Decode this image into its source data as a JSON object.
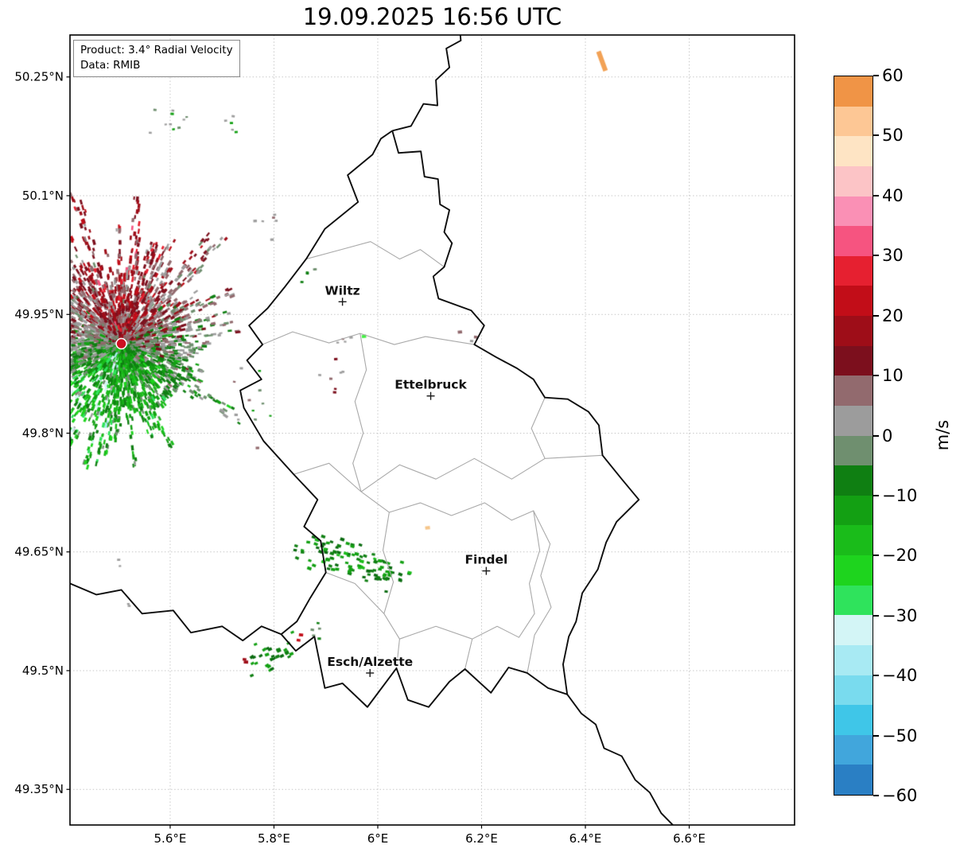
{
  "title": "19.09.2025 16:56 UTC",
  "product_box": {
    "line1": "Product: 3.4° Radial Velocity",
    "line2": "Data: RMIB"
  },
  "axes": {
    "x_ticks": [
      {
        "v": 5.6,
        "label": "5.6°E"
      },
      {
        "v": 5.8,
        "label": "5.8°E"
      },
      {
        "v": 6.0,
        "label": "6°E"
      },
      {
        "v": 6.2,
        "label": "6.2°E"
      },
      {
        "v": 6.4,
        "label": "6.4°E"
      },
      {
        "v": 6.6,
        "label": "6.6°E"
      }
    ],
    "y_ticks": [
      {
        "v": 50.25,
        "label": "50.25°N"
      },
      {
        "v": 50.1,
        "label": "50.1°N"
      },
      {
        "v": 49.95,
        "label": "49.95°N"
      },
      {
        "v": 49.8,
        "label": "49.8°N"
      },
      {
        "v": 49.65,
        "label": "49.65°N"
      },
      {
        "v": 49.5,
        "label": "49.5°N"
      },
      {
        "v": 49.35,
        "label": "49.35°N"
      }
    ]
  },
  "chart_data": {
    "type": "heatmap",
    "title": "19.09.2025 16:56 UTC",
    "product": "3.4° Radial Velocity",
    "data_source": "RMIB",
    "xlim": [
      5.407,
      6.803
    ],
    "ylim": [
      49.305,
      50.303
    ],
    "grid": true,
    "colorbar": {
      "label": "m/s",
      "min": -60,
      "max": 60,
      "ticks": [
        {
          "v": 60,
          "label": "60"
        },
        {
          "v": 50,
          "label": "50"
        },
        {
          "v": 40,
          "label": "40"
        },
        {
          "v": 30,
          "label": "30"
        },
        {
          "v": 20,
          "label": "20"
        },
        {
          "v": 10,
          "label": "10"
        },
        {
          "v": 0,
          "label": "0"
        },
        {
          "v": -10,
          "label": "−10"
        },
        {
          "v": -20,
          "label": "−20"
        },
        {
          "v": -30,
          "label": "−30"
        },
        {
          "v": -40,
          "label": "−40"
        },
        {
          "v": -50,
          "label": "−50"
        },
        {
          "v": -60,
          "label": "−60"
        }
      ],
      "segment_colors_bottom_to_top": [
        "#2a7fc4",
        "#41a6dc",
        "#3fc6e8",
        "#79dbee",
        "#a8eaf3",
        "#d3f5f6",
        "#2fe35c",
        "#1ed41e",
        "#1abc1a",
        "#13a013",
        "#0f7f12",
        "#6f8f6f",
        "#9c9c9c",
        "#926a6e",
        "#7c0f1d",
        "#9e0d18",
        "#c20d18",
        "#e62030",
        "#f65480",
        "#fa90b5",
        "#fcc4c6",
        "#fee4c4",
        "#fdc795",
        "#f09446"
      ]
    },
    "radar": {
      "site_lon": 5.506,
      "site_lat": 49.913,
      "core_radius_deg": 0.135,
      "max_radius_deg": 0.345,
      "amplitude_ms": 13,
      "noise_ms": 6.5,
      "seed": 1337,
      "samples": 7500,
      "marker_color": "#cc1122"
    },
    "cities": [
      {
        "name": "Wiltz",
        "lon": 5.932,
        "lat": 49.966
      },
      {
        "name": "Ettelbruck",
        "lon": 6.102,
        "lat": 49.847
      },
      {
        "name": "Findel",
        "lon": 6.209,
        "lat": 49.626
      },
      {
        "name": "Esch/Alzette",
        "lon": 5.985,
        "lat": 49.497
      }
    ],
    "clutter": [
      {
        "lon": 5.585,
        "lat": 50.193,
        "n": 10,
        "sx": 0.03,
        "sy": 0.012,
        "size": 3,
        "tilt": 0,
        "colors": [
          "#9c9c9c",
          "#6f8f6f",
          "#13a013"
        ]
      },
      {
        "lon": 5.715,
        "lat": 50.186,
        "n": 5,
        "sx": 0.012,
        "sy": 0.008,
        "size": 3,
        "tilt": 0,
        "colors": [
          "#13a013",
          "#9c9c9c"
        ]
      },
      {
        "lon": 5.79,
        "lat": 50.062,
        "n": 6,
        "sx": 0.015,
        "sy": 0.01,
        "size": 3,
        "tilt": 0,
        "colors": [
          "#9c9c9c",
          "#926a6e"
        ]
      },
      {
        "lon": 5.868,
        "lat": 50.003,
        "n": 5,
        "sx": 0.01,
        "sy": 0.008,
        "size": 3,
        "tilt": 0,
        "colors": [
          "#0f7f12",
          "#6f8f6f"
        ]
      },
      {
        "lon": 5.935,
        "lat": 49.918,
        "n": 4,
        "sx": 0.008,
        "sy": 0.006,
        "size": 3,
        "tilt": 0,
        "colors": [
          "#9c9c9c",
          "#926a6e"
        ]
      },
      {
        "lon": 5.972,
        "lat": 49.918,
        "n": 1,
        "sx": 0.002,
        "sy": 0.002,
        "size": 5,
        "tilt": 0,
        "colors": [
          "#45ef45"
        ]
      },
      {
        "lon": 6.17,
        "lat": 49.92,
        "n": 3,
        "sx": 0.01,
        "sy": 0.004,
        "size": 4,
        "tilt": 0,
        "colors": [
          "#9c9c9c",
          "#926a6e"
        ]
      },
      {
        "lon": 5.906,
        "lat": 49.872,
        "n": 7,
        "sx": 0.018,
        "sy": 0.014,
        "size": 3,
        "tilt": 0,
        "colors": [
          "#7c0f1d",
          "#9c9c9c",
          "#926a6e"
        ]
      },
      {
        "lon": 5.94,
        "lat": 49.64,
        "n": 85,
        "sx": 0.055,
        "sy": 0.011,
        "size": 4,
        "tilt": 15,
        "colors": [
          "#0f7f12",
          "#13a013",
          "#0a6b10",
          "#1abc1a"
        ]
      },
      {
        "lon": 6.008,
        "lat": 49.622,
        "n": 20,
        "sx": 0.022,
        "sy": 0.008,
        "size": 4,
        "tilt": 15,
        "colors": [
          "#0f7f12",
          "#0a6b10",
          "#13a013"
        ]
      },
      {
        "lon": 5.79,
        "lat": 49.518,
        "n": 30,
        "sx": 0.028,
        "sy": 0.008,
        "size": 4,
        "tilt": -28,
        "colors": [
          "#0f7f12",
          "#0a6b10",
          "#13a013"
        ]
      },
      {
        "lon": 5.847,
        "lat": 49.543,
        "n": 2,
        "sx": 0.004,
        "sy": 0.003,
        "size": 4,
        "tilt": 0,
        "colors": [
          "#c20d18"
        ]
      },
      {
        "lon": 5.748,
        "lat": 49.512,
        "n": 2,
        "sx": 0.004,
        "sy": 0.003,
        "size": 4,
        "tilt": 0,
        "colors": [
          "#9e0d18"
        ]
      },
      {
        "lon": 5.885,
        "lat": 49.549,
        "n": 5,
        "sx": 0.01,
        "sy": 0.006,
        "size": 3,
        "tilt": 0,
        "colors": [
          "#0f7f12",
          "#6f8f6f"
        ]
      },
      {
        "lon": 6.432,
        "lat": 50.27,
        "n": 1,
        "w": 6,
        "h": 26,
        "rot": -20,
        "colors": [
          "#f2a256"
        ]
      },
      {
        "lon": 6.097,
        "lat": 49.68,
        "n": 1,
        "sx": 0.001,
        "sy": 0.001,
        "size": 5,
        "tilt": 0,
        "colors": [
          "#f5c58a"
        ]
      },
      {
        "lon": 5.505,
        "lat": 49.636,
        "n": 2,
        "sx": 0.004,
        "sy": 0.003,
        "size": 3,
        "tilt": 0,
        "colors": [
          "#9c9c9c"
        ]
      },
      {
        "lon": 5.518,
        "lat": 49.585,
        "n": 2,
        "sx": 0.004,
        "sy": 0.003,
        "size": 3,
        "tilt": 0,
        "colors": [
          "#9c9c9c",
          "#6f8f6f"
        ]
      },
      {
        "lon": 5.76,
        "lat": 49.838,
        "n": 12,
        "sx": 0.03,
        "sy": 0.02,
        "size": 3,
        "tilt": 0,
        "colors": [
          "#6f8f6f",
          "#9c9c9c",
          "#926a6e",
          "#13a013"
        ]
      }
    ],
    "borders": {
      "luxembourg": [
        [
          6.028,
          50.182
        ],
        [
          6.04,
          50.154
        ],
        [
          6.083,
          50.156
        ],
        [
          6.09,
          50.124
        ],
        [
          6.116,
          50.121
        ],
        [
          6.12,
          50.089
        ],
        [
          6.138,
          50.082
        ],
        [
          6.128,
          50.054
        ],
        [
          6.143,
          50.04
        ],
        [
          6.128,
          50.01
        ],
        [
          6.107,
          49.998
        ],
        [
          6.117,
          49.97
        ],
        [
          6.18,
          49.955
        ],
        [
          6.205,
          49.936
        ],
        [
          6.186,
          49.912
        ],
        [
          6.228,
          49.896
        ],
        [
          6.268,
          49.882
        ],
        [
          6.3,
          49.868
        ],
        [
          6.322,
          49.845
        ],
        [
          6.366,
          49.843
        ],
        [
          6.406,
          49.827
        ],
        [
          6.426,
          49.81
        ],
        [
          6.433,
          49.772
        ],
        [
          6.47,
          49.742
        ],
        [
          6.503,
          49.716
        ],
        [
          6.46,
          49.688
        ],
        [
          6.44,
          49.662
        ],
        [
          6.424,
          49.628
        ],
        [
          6.394,
          49.598
        ],
        [
          6.382,
          49.562
        ],
        [
          6.368,
          49.543
        ],
        [
          6.357,
          49.508
        ],
        [
          6.365,
          49.47
        ],
        [
          6.328,
          49.478
        ],
        [
          6.288,
          49.497
        ],
        [
          6.252,
          49.504
        ],
        [
          6.218,
          49.472
        ],
        [
          6.168,
          49.502
        ],
        [
          6.138,
          49.486
        ],
        [
          6.098,
          49.454
        ],
        [
          6.058,
          49.463
        ],
        [
          6.036,
          49.503
        ],
        [
          5.98,
          49.454
        ],
        [
          5.932,
          49.484
        ],
        [
          5.898,
          49.478
        ],
        [
          5.878,
          49.543
        ],
        [
          5.842,
          49.525
        ],
        [
          5.814,
          49.546
        ],
        [
          5.844,
          49.562
        ],
        [
          5.87,
          49.592
        ],
        [
          5.9,
          49.624
        ],
        [
          5.89,
          49.664
        ],
        [
          5.858,
          49.682
        ],
        [
          5.884,
          49.716
        ],
        [
          5.838,
          49.748
        ],
        [
          5.78,
          49.79
        ],
        [
          5.742,
          49.832
        ],
        [
          5.735,
          49.854
        ],
        [
          5.776,
          49.868
        ],
        [
          5.748,
          49.892
        ],
        [
          5.778,
          49.912
        ],
        [
          5.752,
          49.936
        ],
        [
          5.788,
          49.958
        ],
        [
          5.82,
          49.984
        ],
        [
          5.862,
          50.02
        ],
        [
          5.898,
          50.058
        ],
        [
          5.962,
          50.092
        ],
        [
          5.942,
          50.126
        ],
        [
          5.99,
          50.152
        ],
        [
          6.006,
          50.172
        ],
        [
          6.028,
          50.182
        ]
      ],
      "belgium_germany": [
        [
          6.028,
          50.182
        ],
        [
          6.064,
          50.188
        ],
        [
          6.088,
          50.216
        ],
        [
          6.115,
          50.214
        ],
        [
          6.112,
          50.246
        ],
        [
          6.138,
          50.262
        ],
        [
          6.132,
          50.286
        ],
        [
          6.16,
          50.296
        ],
        [
          6.158,
          50.31
        ]
      ],
      "france_belgium": [
        [
          5.4,
          49.612
        ],
        [
          5.458,
          49.596
        ],
        [
          5.506,
          49.602
        ],
        [
          5.546,
          49.572
        ],
        [
          5.606,
          49.576
        ],
        [
          5.64,
          49.548
        ],
        [
          5.7,
          49.556
        ],
        [
          5.74,
          49.538
        ],
        [
          5.776,
          49.556
        ],
        [
          5.814,
          49.546
        ]
      ],
      "france_germany": [
        [
          6.365,
          49.47
        ],
        [
          6.392,
          49.446
        ],
        [
          6.42,
          49.432
        ],
        [
          6.436,
          49.402
        ],
        [
          6.47,
          49.392
        ],
        [
          6.496,
          49.362
        ],
        [
          6.524,
          49.346
        ],
        [
          6.546,
          49.32
        ],
        [
          6.576,
          49.3
        ]
      ],
      "district_lines": [
        [
          [
            5.862,
            50.02
          ],
          [
            5.93,
            50.032
          ],
          [
            5.986,
            50.042
          ],
          [
            6.042,
            50.02
          ],
          [
            6.082,
            50.032
          ],
          [
            6.128,
            50.01
          ]
        ],
        [
          [
            5.778,
            49.912
          ],
          [
            5.836,
            49.928
          ],
          [
            5.906,
            49.914
          ],
          [
            5.966,
            49.926
          ],
          [
            6.032,
            49.912
          ],
          [
            6.092,
            49.922
          ],
          [
            6.186,
            49.912
          ]
        ],
        [
          [
            5.966,
            49.926
          ],
          [
            5.978,
            49.88
          ],
          [
            5.956,
            49.84
          ],
          [
            5.972,
            49.8
          ],
          [
            5.952,
            49.762
          ],
          [
            5.968,
            49.726
          ]
        ],
        [
          [
            5.838,
            49.748
          ],
          [
            5.906,
            49.762
          ],
          [
            5.968,
            49.726
          ],
          [
            6.042,
            49.76
          ],
          [
            6.112,
            49.742
          ],
          [
            6.186,
            49.768
          ],
          [
            6.258,
            49.742
          ],
          [
            6.322,
            49.768
          ],
          [
            6.433,
            49.772
          ]
        ],
        [
          [
            5.968,
            49.726
          ],
          [
            6.022,
            49.7
          ],
          [
            6.082,
            49.712
          ],
          [
            6.142,
            49.696
          ],
          [
            6.206,
            49.712
          ],
          [
            6.258,
            49.69
          ],
          [
            6.3,
            49.702
          ],
          [
            6.312,
            49.652
          ],
          [
            6.292,
            49.61
          ],
          [
            6.302,
            49.572
          ],
          [
            6.272,
            49.542
          ],
          [
            6.23,
            49.556
          ],
          [
            6.182,
            49.54
          ],
          [
            6.112,
            49.556
          ],
          [
            6.042,
            49.54
          ],
          [
            6.012,
            49.572
          ],
          [
            6.03,
            49.612
          ],
          [
            6.01,
            49.652
          ],
          [
            6.022,
            49.7
          ]
        ],
        [
          [
            5.9,
            49.624
          ],
          [
            5.956,
            49.61
          ],
          [
            6.012,
            49.572
          ]
        ],
        [
          [
            6.042,
            49.54
          ],
          [
            6.036,
            49.503
          ]
        ],
        [
          [
            6.3,
            49.702
          ],
          [
            6.332,
            49.66
          ],
          [
            6.314,
            49.62
          ],
          [
            6.334,
            49.58
          ],
          [
            6.302,
            49.545
          ],
          [
            6.288,
            49.497
          ]
        ],
        [
          [
            6.322,
            49.845
          ],
          [
            6.296,
            49.806
          ],
          [
            6.322,
            49.768
          ]
        ],
        [
          [
            6.182,
            49.54
          ],
          [
            6.168,
            49.502
          ]
        ]
      ]
    }
  }
}
